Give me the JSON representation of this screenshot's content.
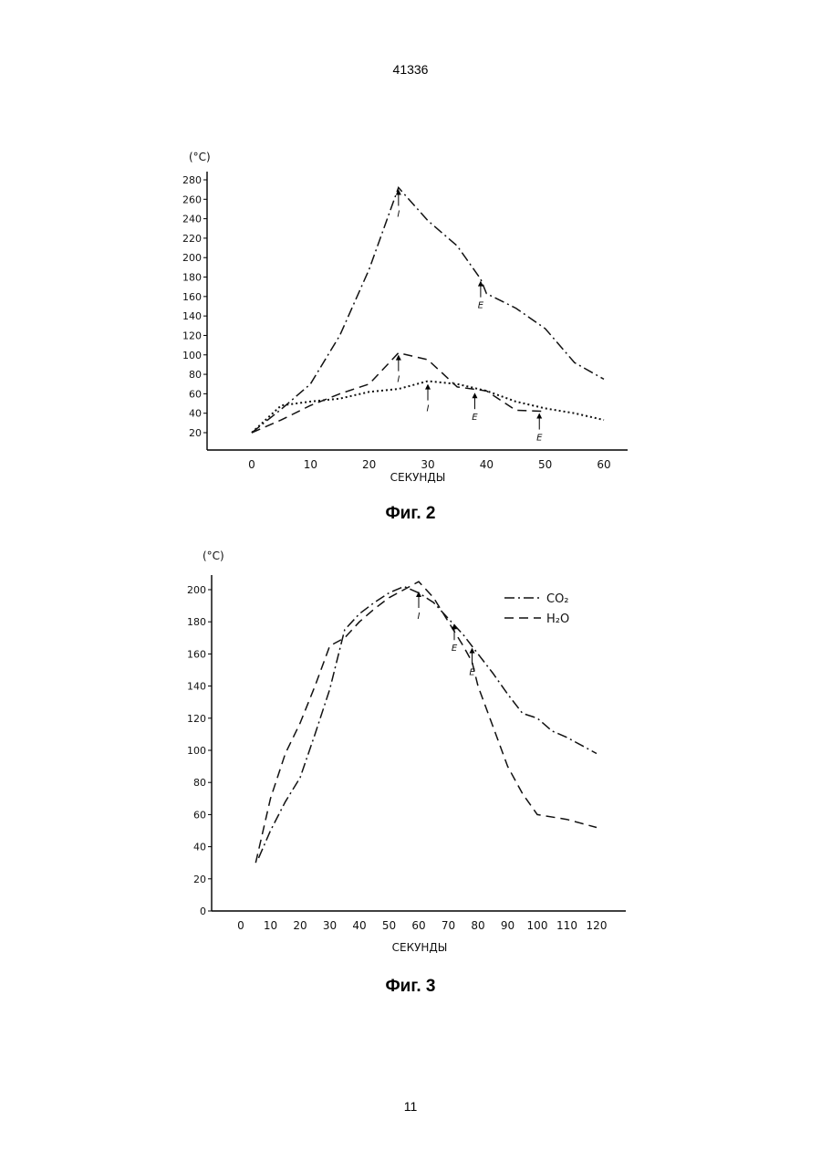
{
  "page": {
    "number_top": "41336",
    "number_bottom": "11"
  },
  "chart_data": [
    {
      "type": "line",
      "caption": "Фиг. 2",
      "ylabel": "(°C)",
      "xlabel": "СЕКУНДЫ",
      "xlim": [
        0,
        60
      ],
      "ylim": [
        20,
        280
      ],
      "xticks": [
        0,
        10,
        20,
        30,
        40,
        50,
        60
      ],
      "yticks": [
        20,
        40,
        60,
        80,
        100,
        120,
        140,
        160,
        180,
        200,
        220,
        240,
        260,
        280
      ],
      "grid": false,
      "series": [
        {
          "style": "dash-dot",
          "x": [
            0,
            5,
            10,
            15,
            20,
            25,
            30,
            35,
            39,
            40,
            45,
            50,
            55,
            60
          ],
          "y": [
            20,
            44,
            70,
            120,
            188,
            272,
            238,
            212,
            178,
            163,
            148,
            127,
            92,
            75
          ]
        },
        {
          "style": "dashed",
          "x": [
            0,
            5,
            10,
            15,
            20,
            25,
            30,
            35,
            40,
            45,
            50
          ],
          "y": [
            20,
            33,
            48,
            60,
            70,
            102,
            95,
            67,
            63,
            43,
            42
          ]
        },
        {
          "style": "dotted",
          "x": [
            0,
            5,
            10,
            15,
            20,
            25,
            30,
            35,
            40,
            45,
            50,
            55,
            60
          ],
          "y": [
            20,
            48,
            52,
            55,
            62,
            65,
            73,
            70,
            63,
            52,
            45,
            40,
            33
          ]
        }
      ],
      "annotations": [
        {
          "text": "I",
          "x": 25,
          "y": 272,
          "series": 0
        },
        {
          "text": "E",
          "x": 39,
          "y": 178,
          "series": 0
        },
        {
          "text": "I",
          "x": 25,
          "y": 102,
          "series": 1
        },
        {
          "text": "E",
          "x": 49,
          "y": 42,
          "series": 1
        },
        {
          "text": "I",
          "x": 30,
          "y": 72,
          "series": 2
        },
        {
          "text": "E",
          "x": 38,
          "y": 63,
          "series": 2
        }
      ]
    },
    {
      "type": "line",
      "caption": "Фиг. 3",
      "ylabel": "(°C)",
      "xlabel": "СЕКУНДЫ",
      "xlim": [
        0,
        120
      ],
      "ylim": [
        0,
        200
      ],
      "xticks": [
        0,
        10,
        20,
        30,
        40,
        50,
        60,
        70,
        80,
        90,
        100,
        110,
        120
      ],
      "yticks": [
        0,
        20,
        40,
        60,
        80,
        100,
        120,
        140,
        160,
        180,
        200
      ],
      "grid": false,
      "legend_position": "top-right",
      "series": [
        {
          "name": "CO₂",
          "style": "dash-dot",
          "x": [
            6,
            10,
            15,
            20,
            25,
            30,
            35,
            40,
            45,
            50,
            55,
            60,
            65,
            70,
            75,
            80,
            85,
            90,
            95,
            100,
            105,
            110,
            115,
            120
          ],
          "y": [
            33,
            50,
            68,
            83,
            110,
            138,
            175,
            185,
            192,
            198,
            202,
            198,
            192,
            182,
            172,
            160,
            148,
            135,
            123,
            120,
            112,
            108,
            103,
            98
          ]
        },
        {
          "name": "H₂O",
          "style": "dashed",
          "x": [
            5,
            10,
            15,
            20,
            25,
            30,
            35,
            40,
            45,
            50,
            55,
            60,
            65,
            70,
            75,
            78,
            80,
            85,
            90,
            95,
            100,
            110,
            120
          ],
          "y": [
            30,
            70,
            98,
            117,
            140,
            165,
            170,
            180,
            188,
            195,
            200,
            205,
            195,
            180,
            165,
            155,
            140,
            115,
            90,
            73,
            60,
            57,
            52
          ]
        }
      ],
      "annotations": [
        {
          "text": "I",
          "x": 60,
          "y": 200,
          "series": 0
        },
        {
          "text": "E",
          "x": 72,
          "y": 180,
          "series": 0
        },
        {
          "text": "E",
          "x": 78,
          "y": 165,
          "series": 1
        }
      ]
    }
  ]
}
